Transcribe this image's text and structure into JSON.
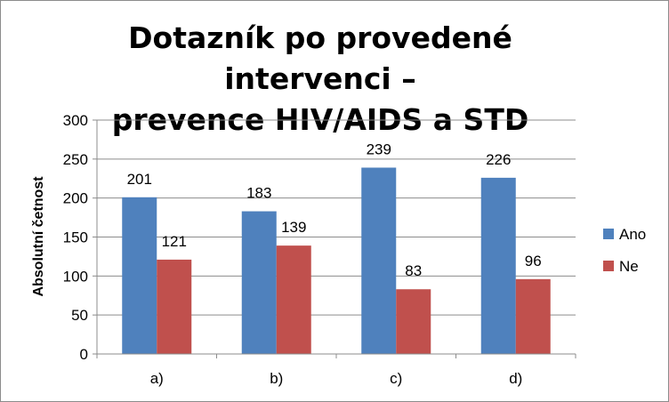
{
  "chart_data": {
    "type": "bar",
    "title_line1": "Dotazník po provedené intervenci –",
    "title_line2": "prevence HIV/AIDS a STD",
    "xlabel": "",
    "ylabel": "Absolutní četnost",
    "categories": [
      "a)",
      "b)",
      "c)",
      "d)"
    ],
    "series": [
      {
        "name": "Ano",
        "values": [
          201,
          183,
          239,
          226
        ],
        "color": "#4f81bd"
      },
      {
        "name": "Ne",
        "values": [
          121,
          139,
          83,
          96
        ],
        "color": "#c0504d"
      }
    ],
    "ylim": [
      0,
      300
    ],
    "yticks": [
      0,
      50,
      100,
      150,
      200,
      250,
      300
    ],
    "grid": true,
    "legend_position": "right"
  }
}
